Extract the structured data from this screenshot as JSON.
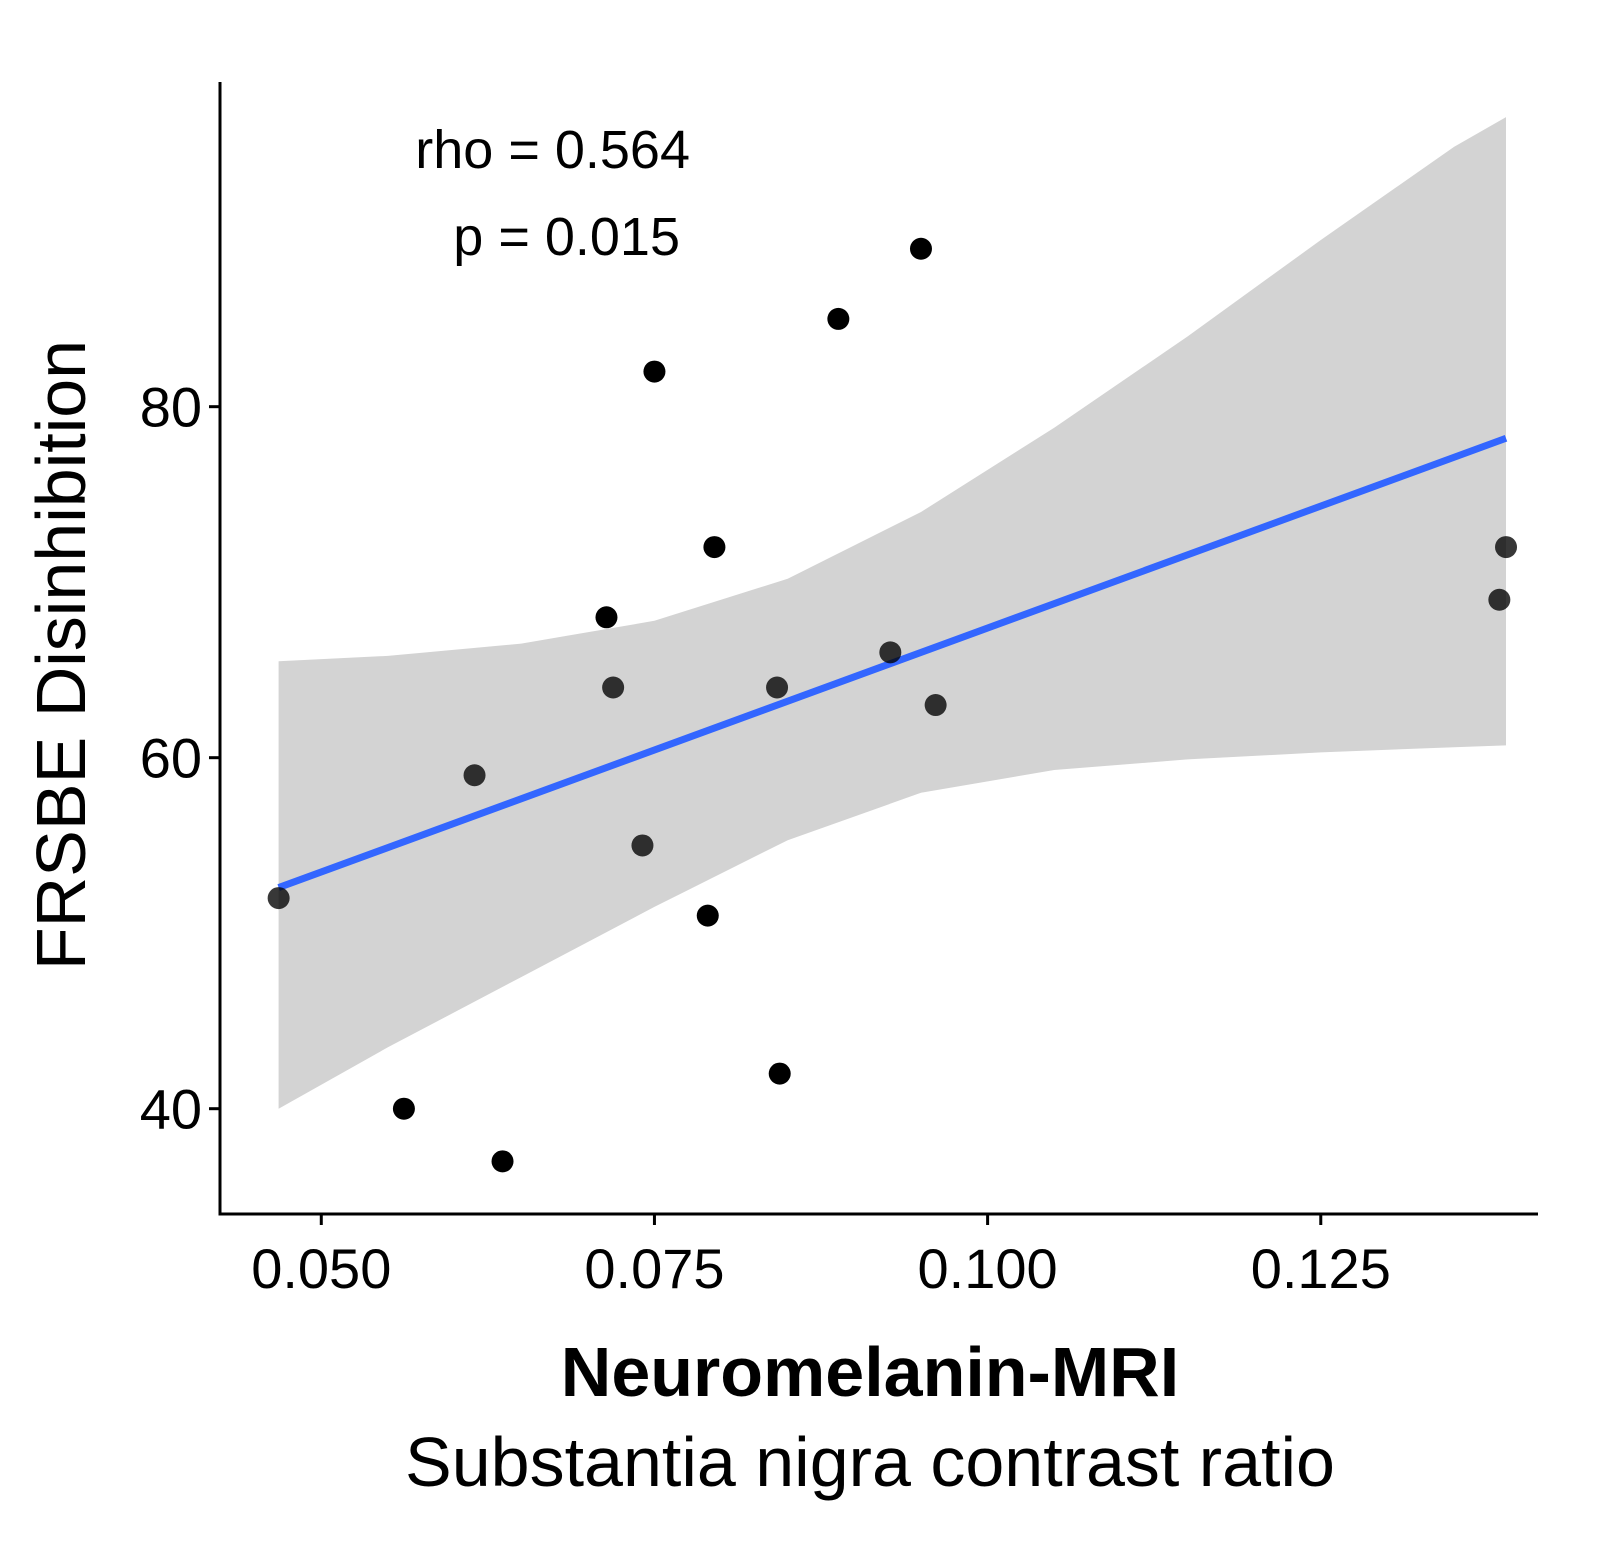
{
  "chart_data": {
    "type": "scatter",
    "title": "",
    "xlabel": "Neuromelanin-MRI",
    "xlabel_sub": "Substantia nigra contrast ratio",
    "ylabel": "FRSBE Disinhibition",
    "xlim": [
      0.0424,
      0.1413
    ],
    "ylim": [
      34.0,
      98.5
    ],
    "xticks": [
      0.05,
      0.075,
      0.1,
      0.125
    ],
    "xtick_labels": [
      "0.050",
      "0.075",
      "0.100",
      "0.125"
    ],
    "yticks": [
      40,
      60,
      80
    ],
    "ytick_labels": [
      "40",
      "60",
      "80"
    ],
    "annotations": [
      "rho = 0.564",
      "p = 0.015"
    ],
    "grid": false,
    "point_color": "#000000",
    "fit_color": "#3366FF",
    "band_color": "#D3D3D3",
    "points": [
      {
        "x": 0.0468,
        "y": 52
      },
      {
        "x": 0.0562,
        "y": 40
      },
      {
        "x": 0.0615,
        "y": 59
      },
      {
        "x": 0.0636,
        "y": 37
      },
      {
        "x": 0.0714,
        "y": 68
      },
      {
        "x": 0.0719,
        "y": 64
      },
      {
        "x": 0.0741,
        "y": 55
      },
      {
        "x": 0.075,
        "y": 82
      },
      {
        "x": 0.079,
        "y": 51
      },
      {
        "x": 0.0795,
        "y": 72
      },
      {
        "x": 0.0842,
        "y": 64
      },
      {
        "x": 0.0844,
        "y": 42
      },
      {
        "x": 0.0888,
        "y": 85
      },
      {
        "x": 0.0927,
        "y": 66
      },
      {
        "x": 0.095,
        "y": 89
      },
      {
        "x": 0.0961,
        "y": 63
      },
      {
        "x": 0.1384,
        "y": 69
      },
      {
        "x": 0.1389,
        "y": 72
      }
    ],
    "fit_line": {
      "x": [
        0.0468,
        0.1389
      ],
      "y": [
        52.6,
        78.2
      ]
    },
    "confidence_band": {
      "x": [
        0.0468,
        0.055,
        0.065,
        0.075,
        0.085,
        0.095,
        0.105,
        0.115,
        0.125,
        0.135,
        0.1389
      ],
      "upper": [
        65.5,
        65.8,
        66.5,
        67.8,
        70.2,
        74.0,
        78.8,
        84.0,
        89.5,
        94.8,
        96.5
      ],
      "lower": [
        40.0,
        43.5,
        47.5,
        51.5,
        55.3,
        58.0,
        59.3,
        59.9,
        60.3,
        60.6,
        60.7
      ]
    }
  }
}
